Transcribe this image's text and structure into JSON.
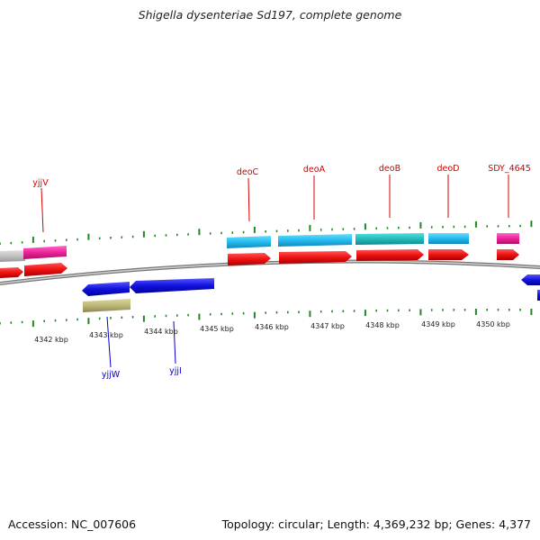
{
  "title": "Shigella dysenteriae Sd197, complete genome",
  "footer": {
    "accession": "Accession: NC_007606",
    "stats": "Topology: circular; Length: 4,369,232 bp; Genes: 4,377"
  },
  "colors": {
    "forward_cds": "#ee1111",
    "reverse_cds": "#1111dd",
    "light_blue_feature": "#22bbee",
    "teal_feature": "#22bbbb",
    "pink_feature": "#ee2299",
    "gray_feature": "#c0c0c0",
    "olive_feature": "#bdb878",
    "ticks": "#228822",
    "backbone": "#888888"
  },
  "axis_ticks": [
    "4342 kbp",
    "4343 kbp",
    "4344 kbp",
    "4345 kbp",
    "4346 kbp",
    "4347 kbp",
    "4348 kbp",
    "4349 kbp",
    "4350 kbp"
  ],
  "gene_labels_top": [
    "yjjV",
    "deoC",
    "deoA",
    "deoB",
    "deoD",
    "SDY_4645"
  ],
  "gene_labels_bottom": [
    "yjjW",
    "yjjI"
  ]
}
